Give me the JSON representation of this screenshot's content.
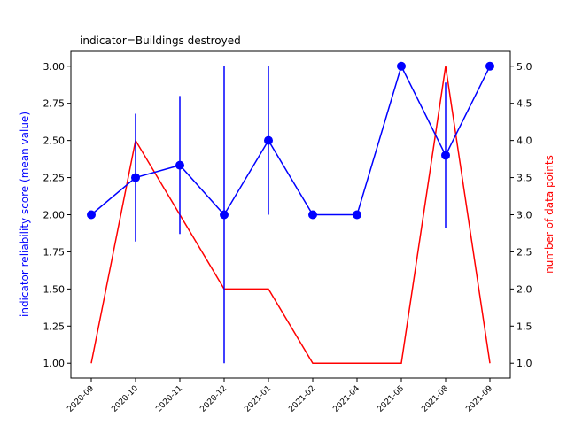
{
  "chart_data": {
    "type": "line",
    "title": "indicator=Buildings destroyed",
    "ylabel_left": "indicator reliability score (mean value)",
    "ylabel_right": "number of data points",
    "categories": [
      "2020-09",
      "2020-10",
      "2020-11",
      "2020-12",
      "2021-01",
      "2021-02",
      "2021-04",
      "2021-05",
      "2021-08",
      "2021-09"
    ],
    "ylim_left": [
      0.9,
      3.1
    ],
    "ylim_right": [
      0.8,
      5.2
    ],
    "yticks_left": [
      "1.00",
      "1.25",
      "1.50",
      "1.75",
      "2.00",
      "2.25",
      "2.50",
      "2.75",
      "3.00"
    ],
    "yticks_right": [
      "1.0",
      "1.5",
      "2.0",
      "2.5",
      "3.0",
      "3.5",
      "4.0",
      "4.5",
      "5.0"
    ],
    "series": [
      {
        "axis": "left",
        "color": "#0000ff",
        "marker": "circle",
        "values": [
          2.0,
          2.25,
          2.333,
          2.0,
          2.5,
          2.0,
          2.0,
          3.0,
          2.4,
          3.0
        ],
        "error_low": [
          2.0,
          1.82,
          1.87,
          1.0,
          2.0,
          2.0,
          2.0,
          3.0,
          1.91,
          3.0
        ],
        "error_high": [
          2.0,
          2.68,
          2.8,
          3.0,
          3.0,
          2.0,
          2.0,
          3.0,
          2.89,
          3.0
        ]
      },
      {
        "axis": "right",
        "color": "#ff0000",
        "values": [
          1,
          4,
          3,
          2,
          2,
          1,
          1,
          1,
          5,
          1
        ]
      }
    ],
    "grid": false,
    "legend": "none"
  }
}
